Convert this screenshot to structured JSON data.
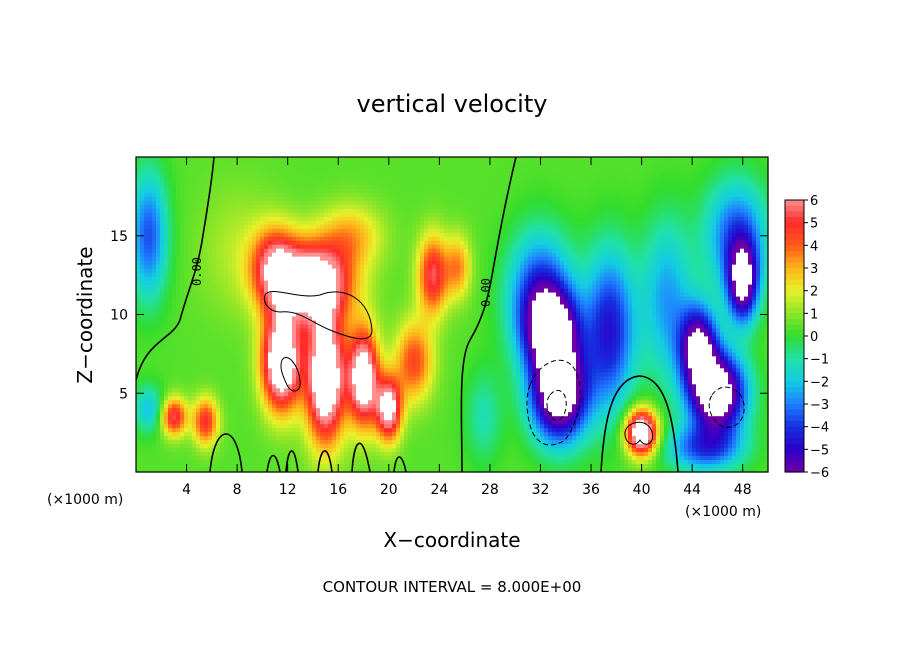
{
  "chart_data": {
    "type": "heatmap",
    "title": "vertical velocity",
    "xlabel": "X−coordinate",
    "ylabel": "Z−coordinate",
    "x_multiplier_label": "(×1000 m)",
    "xlim": [
      0,
      50
    ],
    "ylim": [
      0,
      20
    ],
    "x_ticks": [
      4,
      8,
      12,
      16,
      20,
      24,
      28,
      32,
      36,
      40,
      44,
      48
    ],
    "x_tick_labels": [
      "4",
      "8",
      "12",
      "16",
      "20",
      "24",
      "28",
      "32",
      "36",
      "40",
      "44",
      "48"
    ],
    "y_ticks": [
      5,
      10,
      15
    ],
    "y_tick_labels": [
      "5",
      "10",
      "15"
    ],
    "colorbar": {
      "min": -6,
      "max": 6,
      "labels": [
        "6",
        "5",
        "4",
        "3",
        "2",
        "1",
        "0",
        "−1",
        "−2",
        "−3",
        "−4",
        "−5",
        "−6"
      ]
    },
    "contour_labels": [
      "0.00",
      "0.00"
    ],
    "footer": "CONTOUR INTERVAL = 8.000E+00",
    "features": [
      {
        "x": 1.0,
        "z": 15.0,
        "w": -4.0,
        "sx": 1.5,
        "sz": 4.0
      },
      {
        "x": 1.0,
        "z": 4.0,
        "w": -2.5,
        "sx": 1.2,
        "sz": 1.5
      },
      {
        "x": 3.0,
        "z": 3.5,
        "w": 5.0,
        "sx": 1.0,
        "sz": 1.2
      },
      {
        "x": 5.5,
        "z": 3.2,
        "w": 4.5,
        "sx": 1.0,
        "sz": 1.5
      },
      {
        "x": 8.0,
        "z": 14.0,
        "w": 1.0,
        "sx": 3.0,
        "sz": 4.0
      },
      {
        "x": 11.0,
        "z": 13.0,
        "w": 5.0,
        "sx": 1.8,
        "sz": 2.5
      },
      {
        "x": 14.0,
        "z": 12.0,
        "w": 8.0,
        "sx": 3.0,
        "sz": 2.5
      },
      {
        "x": 11.5,
        "z": 7.0,
        "w": 9.0,
        "sx": 1.5,
        "sz": 3.0
      },
      {
        "x": 15.0,
        "z": 6.0,
        "w": 9.0,
        "sx": 1.5,
        "sz": 4.0
      },
      {
        "x": 18.0,
        "z": 6.0,
        "w": 8.0,
        "sx": 1.2,
        "sz": 3.0
      },
      {
        "x": 20.0,
        "z": 4.0,
        "w": 7.0,
        "sx": 1.0,
        "sz": 2.0
      },
      {
        "x": 17.0,
        "z": 15.0,
        "w": 2.5,
        "sx": 2.5,
        "sz": 2.0
      },
      {
        "x": 23.5,
        "z": 12.5,
        "w": 5.0,
        "sx": 1.2,
        "sz": 2.5
      },
      {
        "x": 22.0,
        "z": 7.0,
        "w": 4.0,
        "sx": 1.5,
        "sz": 2.5
      },
      {
        "x": 25.5,
        "z": 13.0,
        "w": 3.0,
        "sx": 1.0,
        "sz": 2.0
      },
      {
        "x": 27.5,
        "z": 3.5,
        "w": -1.5,
        "sx": 1.5,
        "sz": 3.0
      },
      {
        "x": 32.0,
        "z": 11.0,
        "w": -5.0,
        "sx": 2.5,
        "sz": 4.0
      },
      {
        "x": 33.5,
        "z": 5.0,
        "w": -9.0,
        "sx": 2.2,
        "sz": 3.0
      },
      {
        "x": 33.0,
        "z": 9.0,
        "w": -6.5,
        "sx": 2.0,
        "sz": 2.5
      },
      {
        "x": 37.5,
        "z": 9.0,
        "w": -5.0,
        "sx": 2.0,
        "sz": 5.0
      },
      {
        "x": 40.0,
        "z": 2.5,
        "w": 9.0,
        "sx": 1.2,
        "sz": 1.4
      },
      {
        "x": 42.0,
        "z": 11.0,
        "w": -3.0,
        "sx": 2.0,
        "sz": 5.0
      },
      {
        "x": 46.0,
        "z": 5.0,
        "w": -9.0,
        "sx": 2.2,
        "sz": 2.5
      },
      {
        "x": 44.5,
        "z": 8.0,
        "w": -7.0,
        "sx": 1.5,
        "sz": 2.5
      },
      {
        "x": 48.0,
        "z": 12.0,
        "w": -7.0,
        "sx": 1.2,
        "sz": 2.5
      },
      {
        "x": 47.5,
        "z": 15.0,
        "w": -4.0,
        "sx": 2.5,
        "sz": 3.5
      },
      {
        "x": 45.0,
        "z": 1.5,
        "w": -4.0,
        "sx": 3.0,
        "sz": 1.5
      }
    ]
  }
}
